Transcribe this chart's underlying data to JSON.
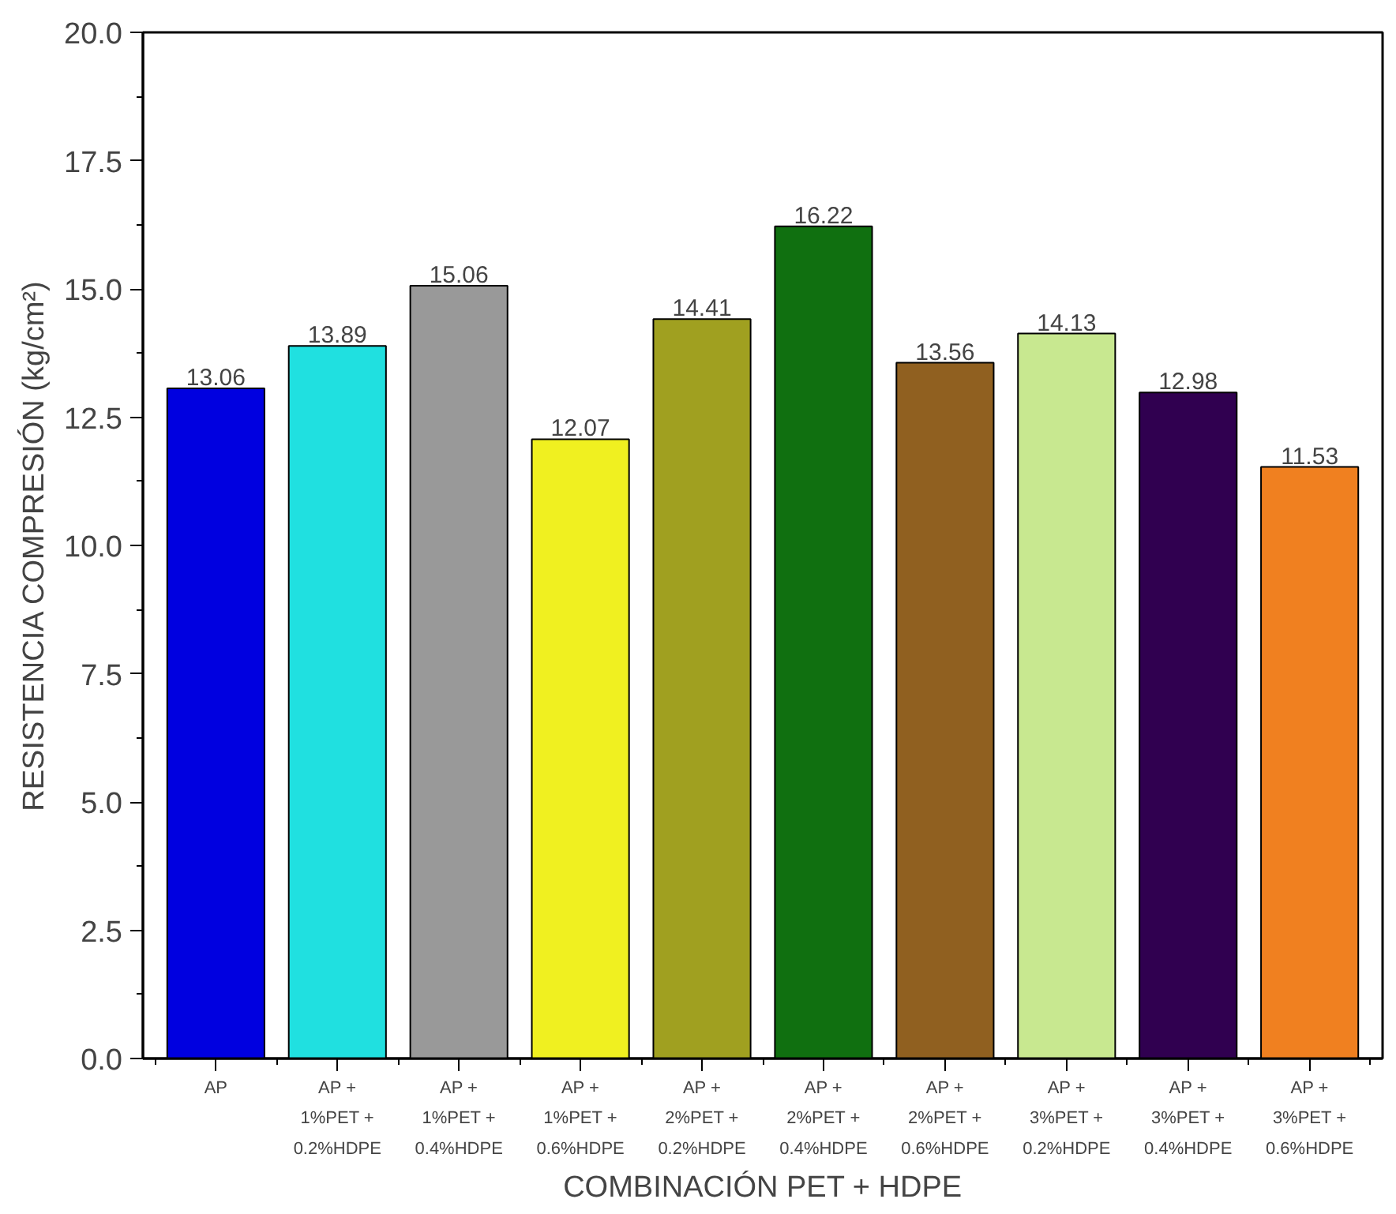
{
  "chart_data": {
    "type": "bar",
    "xlabel": "COMBINACIÓN PET + HDPE",
    "ylabel": "RESISTENCIA COMPRESIÓN (kg/cm²)",
    "categories": [
      "AP",
      "AP +\n1%PET +\n0.2%HDPE",
      "AP +\n1%PET +\n0.4%HDPE",
      "AP +\n1%PET +\n0.6%HDPE",
      "AP +\n2%PET +\n0.2%HDPE",
      "AP +\n2%PET +\n0.4%HDPE",
      "AP +\n2%PET +\n0.6%HDPE",
      "AP +\n3%PET +\n0.2%HDPE",
      "AP +\n3%PET +\n0.4%HDPE",
      "AP +\n3%PET +\n0.6%HDPE"
    ],
    "values": [
      13.06,
      13.89,
      15.06,
      12.07,
      14.41,
      16.22,
      13.56,
      14.13,
      12.98,
      11.53
    ],
    "colors": [
      "#0000e0",
      "#20e0e0",
      "#999999",
      "#f0f020",
      "#a0a020",
      "#107010",
      "#906020",
      "#c8e890",
      "#300050",
      "#f08020"
    ],
    "ylim": [
      0,
      20
    ],
    "yticks": [
      {
        "value": 0,
        "label": "0.0"
      },
      {
        "value": 2.5,
        "label": "2.5"
      },
      {
        "value": 5,
        "label": "5.0"
      },
      {
        "value": 7.5,
        "label": "7.5"
      },
      {
        "value": 10,
        "label": "10.0"
      },
      {
        "value": 12.5,
        "label": "12.5"
      },
      {
        "value": 15,
        "label": "15.0"
      },
      {
        "value": 17.5,
        "label": "17.5"
      },
      {
        "value": 20,
        "label": "20.0"
      }
    ],
    "data_labels": true,
    "grid": false
  }
}
